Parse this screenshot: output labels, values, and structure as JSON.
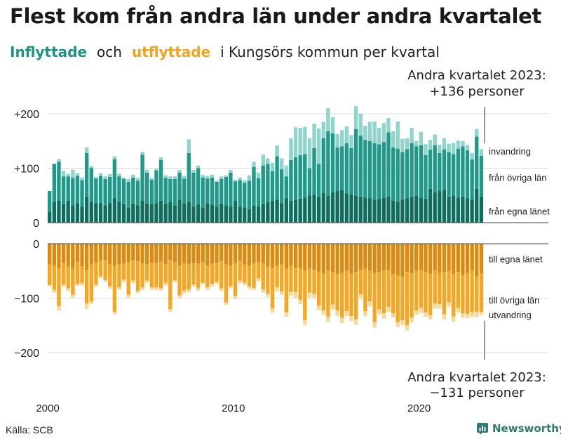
{
  "title": "Flest kom från andra län under andra kvartalet",
  "subtitle": {
    "in_label": "Inflyttade",
    "and": "och",
    "out_label": "utflyttade",
    "rest": "i Kungsörs kommun per kvartal"
  },
  "source": "Källa: SCB",
  "brand": "Newsworthy",
  "colors": {
    "in_egna": "#0e6e5e",
    "in_ovriga": "#1f9a88",
    "in_invandring": "#8fd5cb",
    "out_egna": "#dd8a0e",
    "out_ovriga": "#f5a623",
    "out_utvandring": "#fbd89a"
  },
  "chart_data": {
    "type": "bar",
    "stacked": true,
    "start_year": 2000,
    "periods_per_year": 4,
    "n_quarters": 94,
    "x_tick_labels": [
      "2000",
      "2010",
      "2020"
    ],
    "top_axis": {
      "ticks": [
        "+200",
        "+100",
        "0"
      ],
      "values": [
        200,
        100,
        0
      ],
      "ylim": [
        0,
        220
      ]
    },
    "bottom_axis": {
      "ticks": [
        "0",
        "−100",
        "−200"
      ],
      "values": [
        0,
        -100,
        -200
      ],
      "ylim": [
        -220,
        0
      ]
    },
    "series_in": [
      {
        "name": "från egna länet",
        "values": [
          20,
          38,
          40,
          35,
          40,
          32,
          36,
          30,
          48,
          38,
          36,
          36,
          32,
          36,
          45,
          38,
          35,
          28,
          35,
          32,
          40,
          35,
          34,
          36,
          40,
          35,
          38,
          32,
          42,
          35,
          38,
          30,
          34,
          28,
          36,
          33,
          30,
          35,
          32,
          30,
          40,
          30,
          28,
          25,
          32,
          30,
          35,
          38,
          40,
          42,
          36,
          45,
          40,
          42,
          44,
          46,
          50,
          52,
          48,
          55,
          50,
          56,
          58,
          60,
          54,
          52,
          50,
          48,
          46,
          45,
          42,
          44,
          46,
          48,
          40,
          38,
          42,
          45,
          48,
          50,
          46,
          44,
          62,
          56,
          58,
          60,
          48,
          50,
          46,
          48,
          45,
          42,
          62,
          48
        ]
      },
      {
        "name": "från övriga län",
        "values": [
          38,
          70,
          72,
          50,
          45,
          50,
          50,
          48,
          80,
          62,
          45,
          50,
          48,
          48,
          72,
          47,
          45,
          47,
          48,
          45,
          85,
          57,
          45,
          60,
          75,
          47,
          42,
          48,
          50,
          46,
          90,
          62,
          66,
          55,
          45,
          50,
          45,
          45,
          52,
          62,
          36,
          48,
          45,
          52,
          70,
          52,
          70,
          70,
          55,
          80,
          62,
          40,
          75,
          78,
          80,
          80,
          50,
          85,
          60,
          100,
          118,
          108,
          80,
          80,
          92,
          85,
          122,
          112,
          106,
          105,
          104,
          100,
          102,
          118,
          98,
          98,
          88,
          90,
          98,
          90,
          96,
          80,
          72,
          86,
          70,
          75,
          82,
          76,
          90,
          92,
          88,
          74,
          96,
          75
        ]
      },
      {
        "name": "invandring",
        "values": [
          0,
          0,
          5,
          10,
          5,
          15,
          5,
          5,
          10,
          4,
          3,
          5,
          5,
          5,
          5,
          5,
          3,
          5,
          5,
          5,
          5,
          5,
          3,
          3,
          5,
          5,
          5,
          5,
          5,
          5,
          25,
          5,
          5,
          5,
          5,
          5,
          2,
          5,
          3,
          5,
          3,
          5,
          5,
          10,
          10,
          10,
          20,
          10,
          15,
          20,
          20,
          20,
          40,
          55,
          50,
          50,
          55,
          45,
          65,
          30,
          42,
          30,
          25,
          30,
          31,
          24,
          42,
          40,
          26,
          35,
          40,
          30,
          35,
          26,
          30,
          50,
          24,
          20,
          28,
          10,
          25,
          20,
          18,
          20,
          15,
          20,
          15,
          20,
          15,
          10,
          10,
          12,
          14,
          12
        ]
      }
    ],
    "series_out": [
      {
        "name": "till egna länet",
        "values": [
          38,
          40,
          45,
          35,
          42,
          46,
          34,
          42,
          48,
          38,
          35,
          32,
          30,
          38,
          40,
          38,
          36,
          34,
          30,
          32,
          36,
          38,
          35,
          35,
          32,
          38,
          30,
          34,
          40,
          36,
          38,
          35,
          36,
          34,
          40,
          36,
          35,
          32,
          38,
          40,
          36,
          32,
          38,
          40,
          36,
          34,
          36,
          42,
          44,
          40,
          38,
          46,
          40,
          44,
          45,
          50,
          46,
          48,
          52,
          55,
          50,
          52,
          56,
          54,
          50,
          55,
          52,
          48,
          46,
          50,
          54,
          52,
          50,
          48,
          56,
          58,
          60,
          52,
          54,
          50,
          48,
          52,
          56,
          50,
          54,
          52,
          50,
          56,
          52,
          58,
          54,
          50,
          60,
          55
        ]
      },
      {
        "name": "till övriga län",
        "values": [
          38,
          45,
          70,
          40,
          40,
          48,
          40,
          30,
          62,
          68,
          40,
          28,
          37,
          40,
          85,
          42,
          30,
          60,
          38,
          55,
          44,
          30,
          45,
          45,
          50,
          34,
          90,
          33,
          55,
          50,
          46,
          40,
          45,
          37,
          40,
          38,
          35,
          50,
          70,
          38,
          60,
          36,
          34,
          38,
          45,
          30,
          48,
          50,
          75,
          40,
          50,
          80,
          48,
          45,
          58,
          90,
          44,
          44,
          62,
          67,
          84,
          60,
          67,
          82,
          74,
          78,
          87,
          45,
          78,
          56,
          90,
          69,
          78,
          68,
          72,
          86,
          80,
          98,
          82,
          73,
          70,
          74,
          75,
          60,
          57,
          78,
          58,
          78,
          66,
          70,
          75,
          76,
          65,
          70
        ]
      },
      {
        "name": "utvandring",
        "values": [
          2,
          5,
          8,
          4,
          5,
          5,
          3,
          5,
          10,
          5,
          4,
          3,
          3,
          5,
          5,
          5,
          4,
          5,
          5,
          4,
          5,
          4,
          5,
          5,
          4,
          5,
          5,
          4,
          5,
          5,
          5,
          4,
          5,
          4,
          5,
          5,
          4,
          5,
          4,
          4,
          5,
          5,
          4,
          5,
          4,
          5,
          6,
          6,
          8,
          7,
          6,
          8,
          8,
          10,
          8,
          10,
          9,
          8,
          8,
          9,
          10,
          9,
          10,
          10,
          9,
          9,
          10,
          8,
          9,
          9,
          10,
          9,
          10,
          9,
          8,
          9,
          10,
          9,
          9,
          8,
          9,
          8,
          8,
          9,
          8,
          9,
          8,
          9,
          8,
          8,
          8,
          9,
          10,
          6
        ]
      }
    ],
    "top_series_labels": [
      "invandring",
      "från övriga län",
      "från egna länet"
    ],
    "bottom_series_labels": [
      "till egna länet",
      "till övriga län",
      "utvandring"
    ],
    "annotation_top": {
      "line1": "Andra kvartalet 2023:",
      "line2": "+136 personer"
    },
    "annotation_bottom": {
      "line1": "Andra kvartalet 2023:",
      "line2": "−131 personer"
    }
  }
}
